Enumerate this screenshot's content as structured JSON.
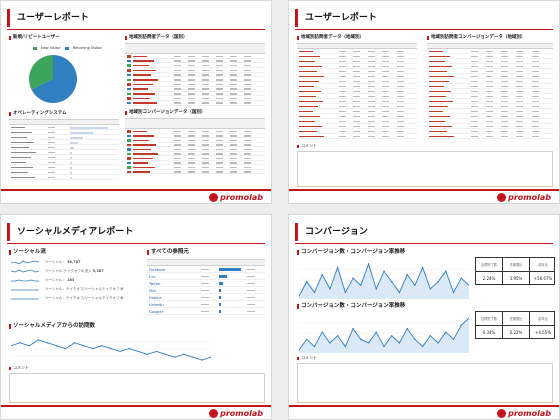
{
  "slide1": {
    "title": "ユーザーレポート",
    "sec_new_visitors": "新規/リピートユーザー",
    "legend_new": "New Visitor",
    "legend_returning": "Returning Visitor",
    "sec_os": "オペレーティングシステム",
    "sec_geo_visits": "地域別訪問者データ（国別）",
    "sec_geo_conv": "地域別コンバージョンデータ（国別）",
    "new_pct": 32.3,
    "returning_pct": 67.7,
    "colors": {
      "new": "#3ba55c",
      "returning": "#2f7fc1"
    }
  },
  "slide2": {
    "title": "ユーザーレポート",
    "sec_geo_visits_city": "地域別訪問者データ（地域別）",
    "sec_geo_conv_city": "地域別訪問者コンバージョンデータ（地域別）",
    "comment": "コメント"
  },
  "slide3": {
    "title": "ソーシャルメディアレポート",
    "sec_social_sessions": "ソーシャル流",
    "sec_referrals": "すべての参照元",
    "sec_social_visits": "ソーシャルメディアからの訪問数",
    "metric_1_label": "ソーシャル：",
    "metric_1_value": "38,767",
    "metric_2_label": "ソーシャル テイクオフの流入",
    "metric_2_value": "5,387",
    "metric_3_label": "ソーシャル：",
    "metric_3_value": "183",
    "metric_4_label": "ソーシャル：テイクオフ/ソーシャルテイクオフ",
    "metric_4_value": "0",
    "metric_5_label": "ソーシャル：テイクオフ/ソーシャルテイクオフ",
    "metric_5_value": "0",
    "referrals": [
      {
        "name": "Facebook"
      },
      {
        "name": "t.co"
      },
      {
        "name": "Twitter"
      },
      {
        "name": "Mixi"
      },
      {
        "name": "Hatena"
      },
      {
        "name": "Linkedin"
      },
      {
        "name": "Google+"
      }
    ],
    "comment": "コメント"
  },
  "slide4": {
    "title": "コンバージョン",
    "sec_cv_rate_1": "コンバージョン数・コンバージョン率推移",
    "sec_cv_rate_2": "コンバージョン数・コンバージョン率推移",
    "comment": "コメント",
    "table1": {
      "headers": [
        "目標完了数",
        "先期間比",
        "前年比"
      ],
      "values": [
        "2.24%",
        "3.95%",
        "+56.67%"
      ]
    },
    "table2": {
      "headers": [
        "目標完了数",
        "先期間比",
        "前年比"
      ],
      "values": [
        "0.34%",
        "0.22%",
        "+4.55%"
      ]
    }
  },
  "footer": {
    "logo_text": "promolab"
  }
}
